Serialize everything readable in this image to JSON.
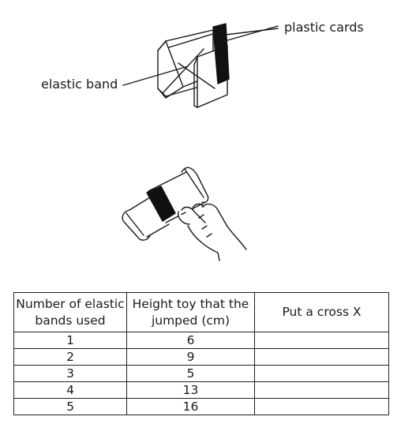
{
  "labels": {
    "plastic_cards": "plastic cards",
    "elastic_band": "elastic band"
  },
  "table": {
    "headers": [
      "Number of elastic bands used",
      "Height toy that the jumped (cm)",
      "Put a cross X"
    ],
    "rows": [
      {
        "bands": "1",
        "height": "6",
        "cross": ""
      },
      {
        "bands": "2",
        "height": "9",
        "cross": ""
      },
      {
        "bands": "3",
        "height": "5",
        "cross": ""
      },
      {
        "bands": "4",
        "height": "13",
        "cross": ""
      },
      {
        "bands": "5",
        "height": "16",
        "cross": ""
      }
    ]
  }
}
